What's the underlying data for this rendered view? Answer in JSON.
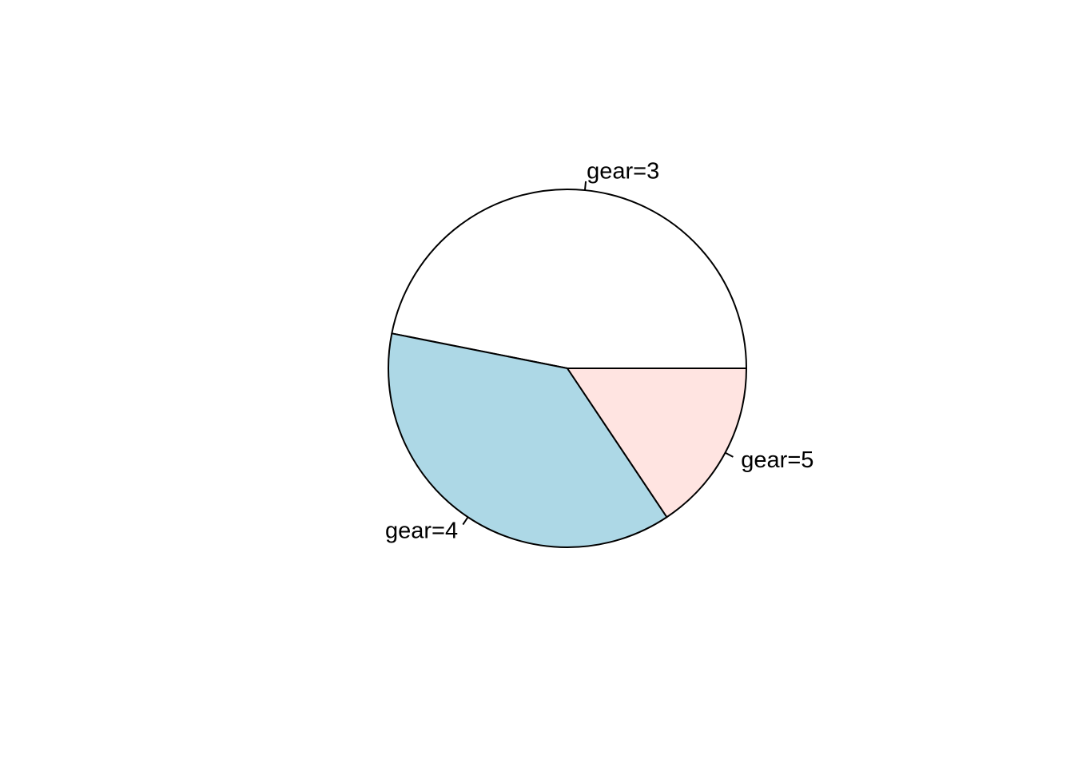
{
  "chart_data": {
    "type": "pie",
    "title": "",
    "categories": [
      "gear=3",
      "gear=4",
      "gear=5"
    ],
    "values": [
      15,
      12,
      5
    ],
    "colors": [
      "#FFFFFF",
      "#ADD8E6",
      "#FFE4E1"
    ],
    "start_angle_deg": 0,
    "direction": "counterclockwise",
    "legend": "none"
  }
}
